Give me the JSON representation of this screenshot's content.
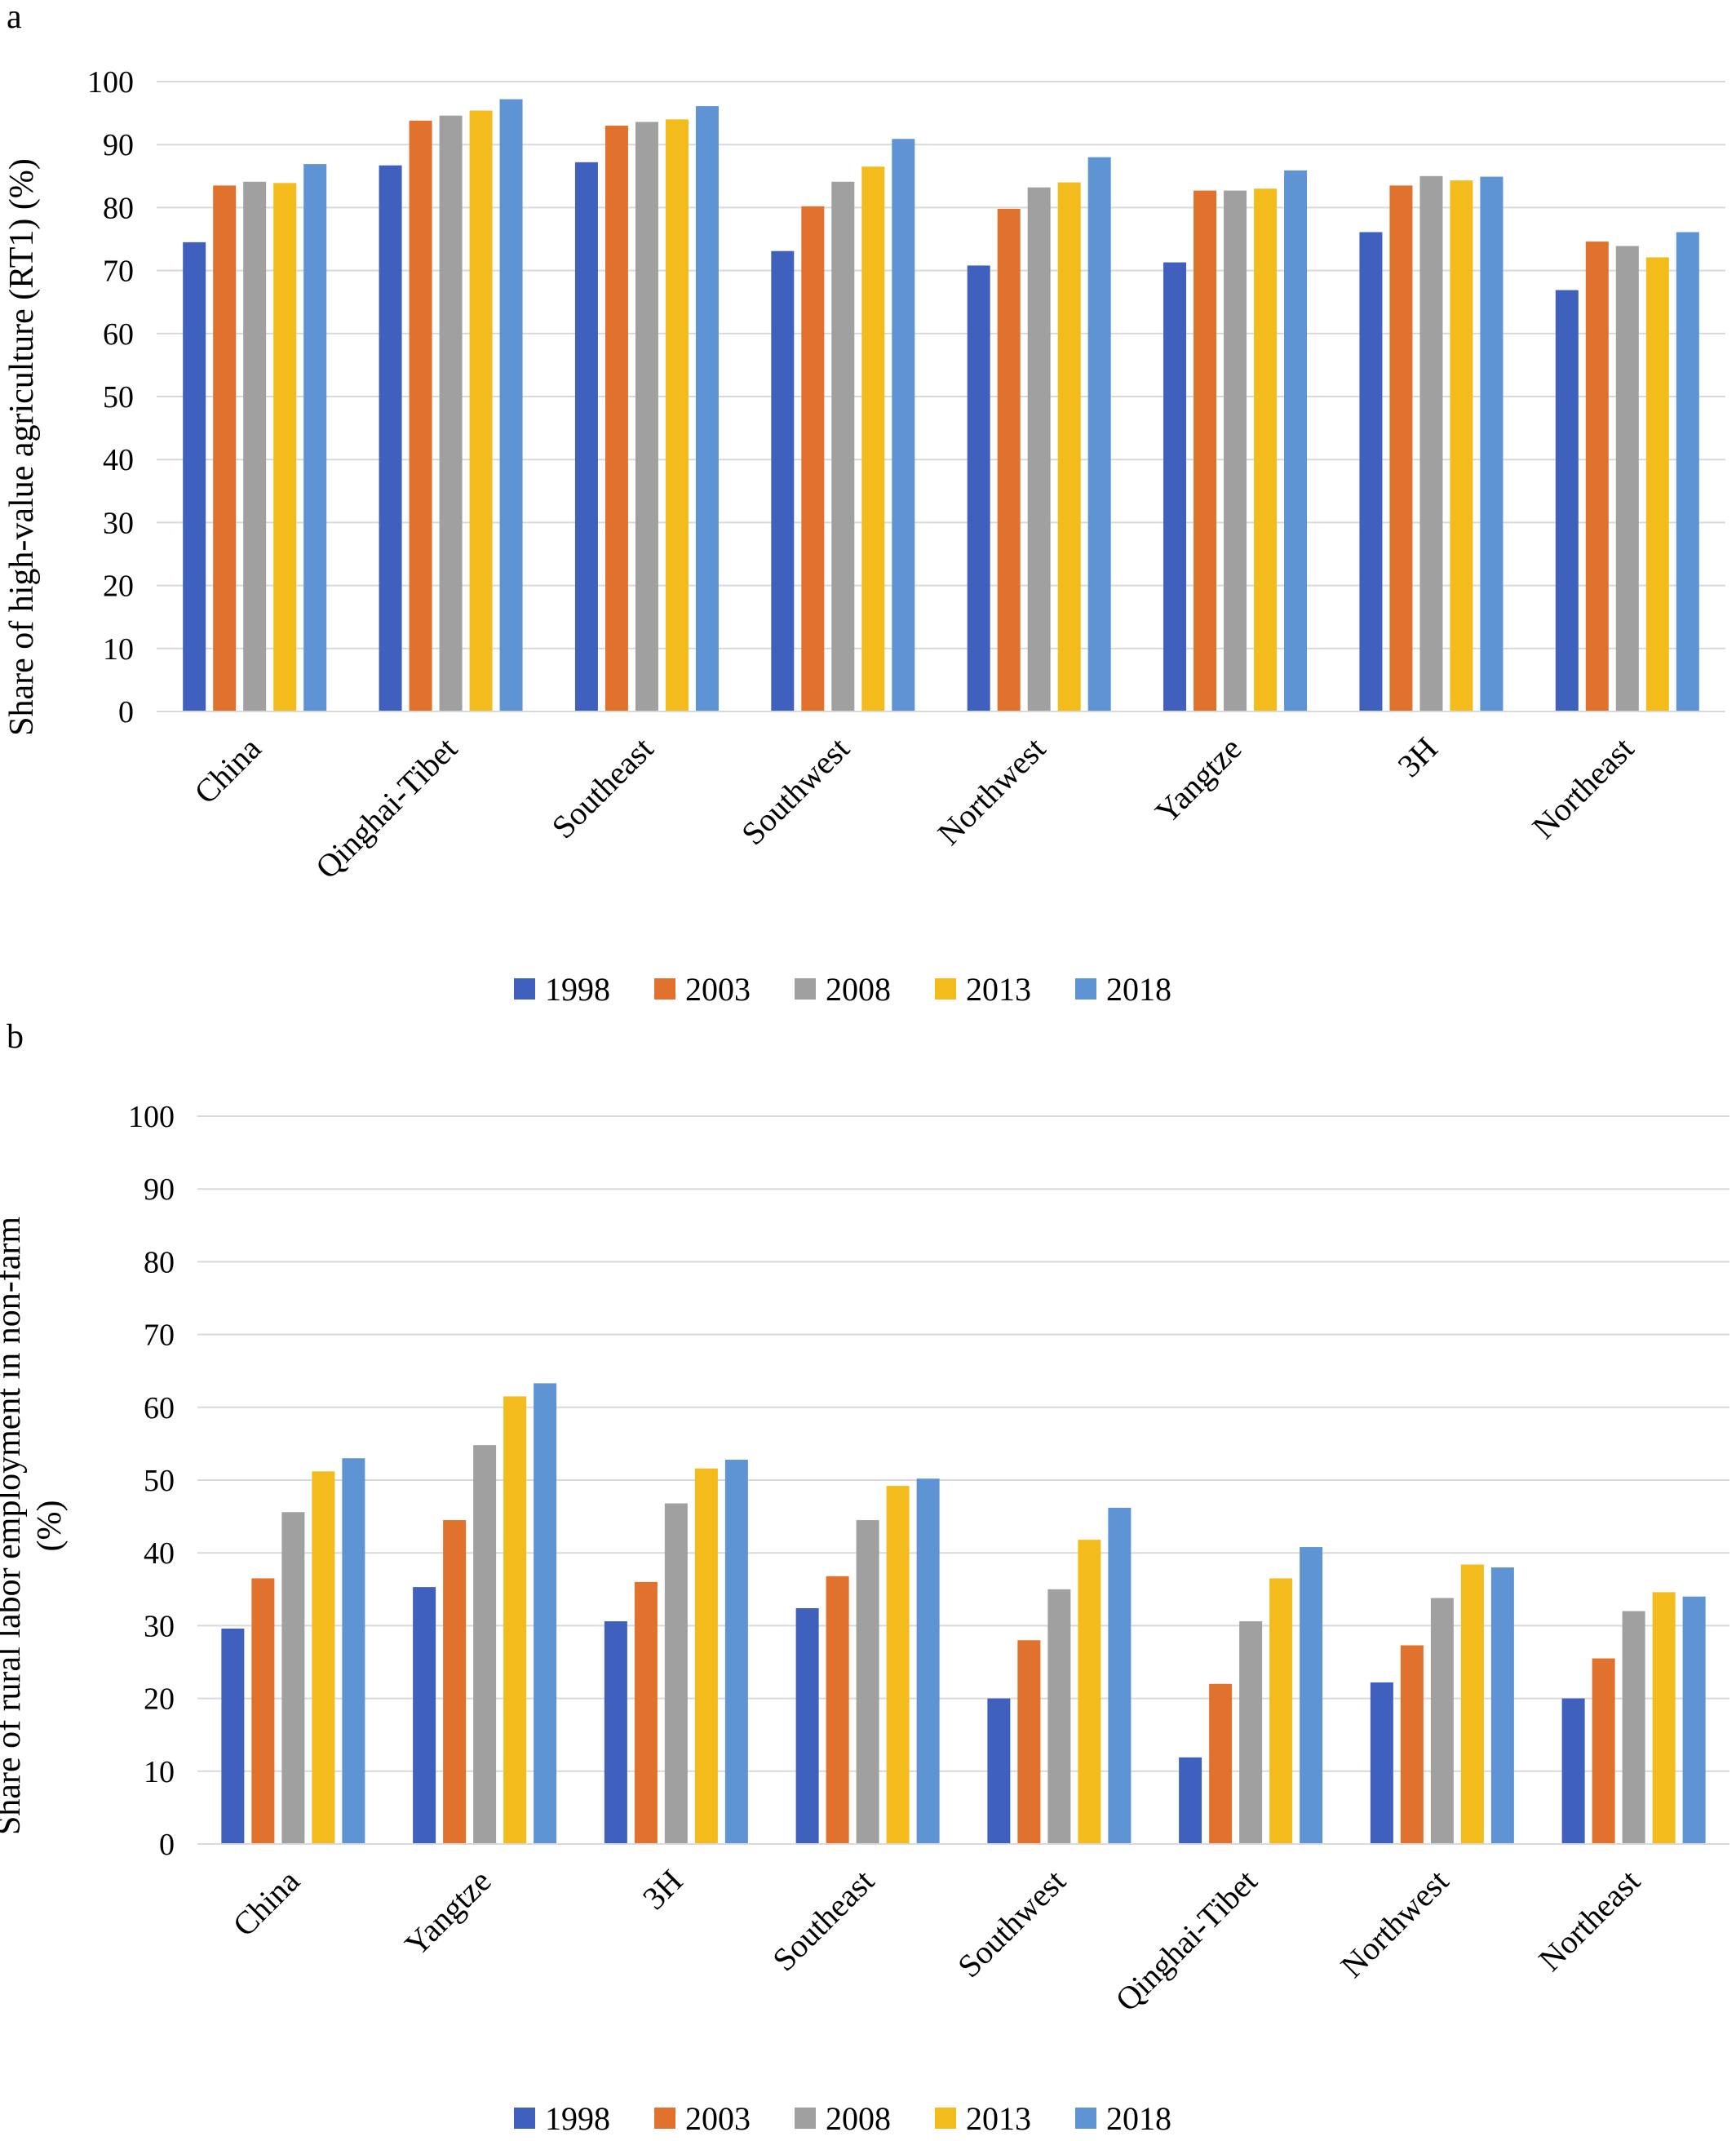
{
  "colors": {
    "1998": "#4060be",
    "2003": "#e0722e",
    "2008": "#a0a0a0",
    "2013": "#f4bb1c",
    "2018": "#5e93d4",
    "gridline": "#d9d9d9"
  },
  "chart_data": [
    {
      "panel_label": "a",
      "type": "bar",
      "title": "",
      "xlabel": "",
      "ylabel": "Share of high-value agriculture (RT1) (%)",
      "ylim": [
        0,
        100
      ],
      "yticks": [
        0,
        10,
        20,
        30,
        40,
        50,
        60,
        70,
        80,
        90,
        100
      ],
      "grid": true,
      "legend_position": "bottom",
      "categories": [
        "China",
        "Qinghai-Tibet",
        "Southeast",
        "Southwest",
        "Northwest",
        "Yangtze",
        "3H",
        "Northeast"
      ],
      "series": [
        {
          "name": "1998",
          "values": [
            74.5,
            86.7,
            87.2,
            73.1,
            70.8,
            71.3,
            76.1,
            66.9
          ]
        },
        {
          "name": "2003",
          "values": [
            83.5,
            93.8,
            93.0,
            80.2,
            79.8,
            82.7,
            83.5,
            74.6
          ]
        },
        {
          "name": "2008",
          "values": [
            84.1,
            94.6,
            93.6,
            84.1,
            83.2,
            82.7,
            85.0,
            73.9
          ]
        },
        {
          "name": "2013",
          "values": [
            83.9,
            95.4,
            94.0,
            86.5,
            84.0,
            83.0,
            84.3,
            72.1
          ]
        },
        {
          "name": "2018",
          "values": [
            86.9,
            97.2,
            96.1,
            90.9,
            88.0,
            85.9,
            84.9,
            76.1
          ]
        }
      ]
    },
    {
      "panel_label": "b",
      "type": "bar",
      "title": "",
      "xlabel": "",
      "ylabel": "Share of rural labor employment in non-farm (%)",
      "ylabel_lines": [
        "Share of rural labor employment in non-farm",
        "(%)"
      ],
      "ylim": [
        0,
        100
      ],
      "yticks": [
        0,
        10,
        20,
        30,
        40,
        50,
        60,
        70,
        80,
        90,
        100
      ],
      "grid": true,
      "legend_position": "bottom",
      "categories": [
        "China",
        "Yangtze",
        "3H",
        "Southeast",
        "Southwest",
        "Qinghai-Tibet",
        "Northwest",
        "Northeast"
      ],
      "series": [
        {
          "name": "1998",
          "values": [
            29.6,
            35.3,
            30.6,
            32.4,
            20.0,
            11.9,
            22.2,
            20.0
          ]
        },
        {
          "name": "2003",
          "values": [
            36.5,
            44.5,
            36.0,
            36.8,
            28.0,
            22.0,
            27.3,
            25.5
          ]
        },
        {
          "name": "2008",
          "values": [
            45.6,
            54.8,
            46.8,
            44.5,
            35.0,
            30.6,
            33.8,
            32.0
          ]
        },
        {
          "name": "2013",
          "values": [
            51.2,
            61.5,
            51.6,
            49.2,
            41.8,
            36.5,
            38.4,
            34.6
          ]
        },
        {
          "name": "2018",
          "values": [
            53.0,
            63.3,
            52.8,
            50.2,
            46.2,
            40.8,
            38.0,
            34.0
          ]
        }
      ]
    }
  ]
}
